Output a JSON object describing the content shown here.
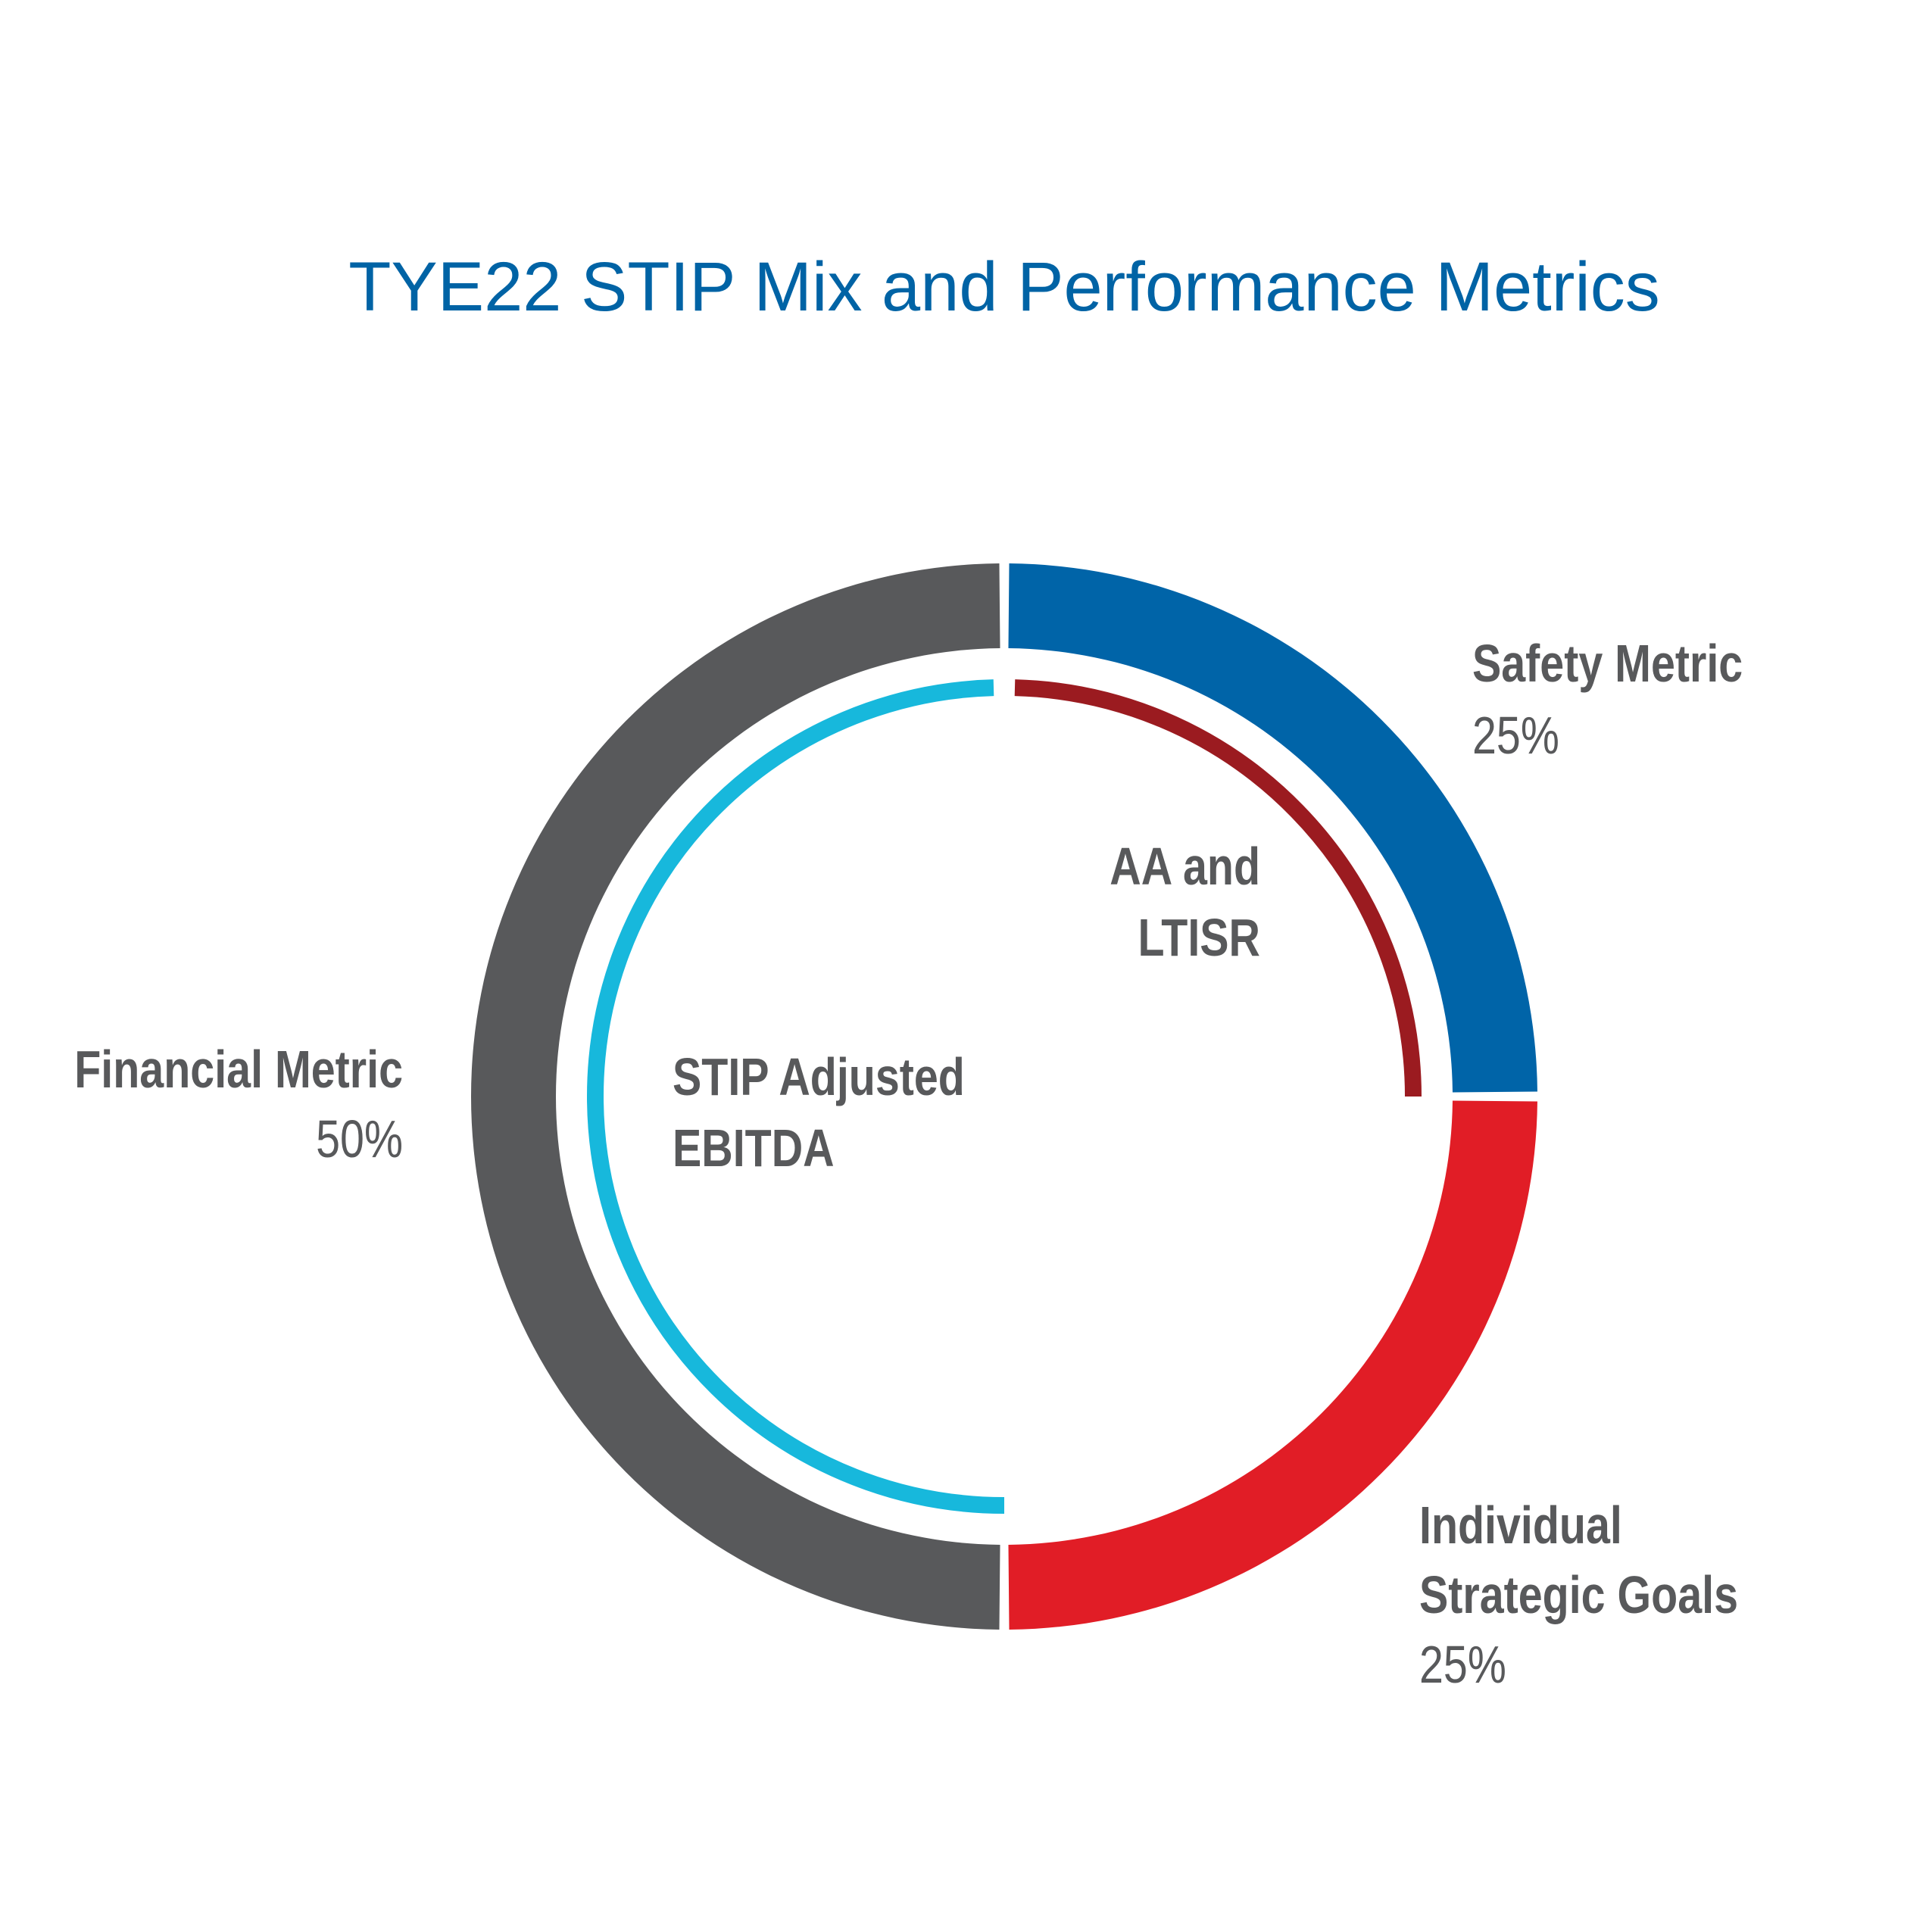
{
  "chart_data": {
    "type": "pie",
    "title": "TYE22 STIP Mix and Performance Metrics",
    "outer_ring": {
      "slices": [
        {
          "name": "Safety Metric",
          "value": 25,
          "percent_label": "25%",
          "color": "#0064a8"
        },
        {
          "name": "Individual Strategic Goals",
          "value": 25,
          "percent_label": "25%",
          "color": "#e11d26"
        },
        {
          "name": "Financial Metric",
          "value": 50,
          "percent_label": "50%",
          "color": "#58595b"
        }
      ]
    },
    "inner_ring": {
      "arcs": [
        {
          "name": "AA and LTISR",
          "value": 25,
          "color": "#9b1b20"
        },
        {
          "name": "STIP Adjusted EBITDA",
          "value": 50,
          "color": "#17b8dc"
        }
      ]
    },
    "labels": {
      "safety_name": "Safety Metric",
      "safety_pct": "25%",
      "individual_line1": "Individual",
      "individual_line2": "Strategic Goals",
      "individual_pct": "25%",
      "financial_name": "Financial Metric",
      "financial_pct": "50%",
      "aa_line1": "AA and",
      "aa_line2": "LTISR",
      "stip_line1": "STIP Adjusted",
      "stip_line2": "EBITDA"
    }
  },
  "colors": {
    "title": "#0063a5",
    "label_text": "#58595b"
  }
}
